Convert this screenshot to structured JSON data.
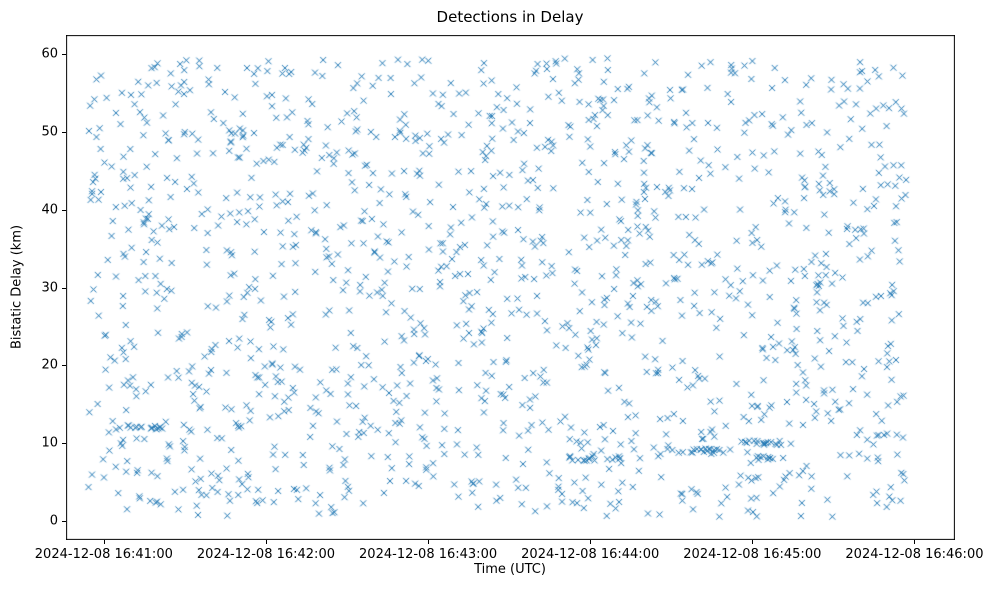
{
  "figure": {
    "background_color": "#ffffff",
    "frame_color": "#000000"
  },
  "chart_data": {
    "type": "scatter",
    "title": "Detections in Delay",
    "xlabel": "Time (UTC)",
    "ylabel": "Bistatic Delay (km)",
    "marker": "x",
    "marker_color": "#1f77b4",
    "marker_size_px": 6,
    "grid": false,
    "legend_position": "none",
    "x_tick_labels": [
      "2024-12-08 16:41:00",
      "2024-12-08 16:42:00",
      "2024-12-08 16:43:00",
      "2024-12-08 16:44:00",
      "2024-12-08 16:45:00",
      "2024-12-08 16:46:00"
    ],
    "x_tick_offsets_s": [
      0,
      60,
      120,
      180,
      240,
      300
    ],
    "x_axis_epoch_label": "2024-12-08 16:41:00",
    "xlim_offsets_s": [
      -14,
      315
    ],
    "y_ticks": [
      0,
      10,
      20,
      30,
      40,
      50,
      60
    ],
    "ylim": [
      -2.5,
      62.5
    ],
    "point_count": 1580,
    "data_extent": {
      "t_min_s": -6,
      "t_max_s": 297,
      "delay_min_km": 0.5,
      "delay_max_km": 59.5
    },
    "distribution": "dense, approximately uniform random scatter of detections over the full time and delay range",
    "random_seed": 42,
    "streak_jitter_km": 0.3,
    "streaks": [
      {
        "delay_km": 12,
        "t_start_s": 8,
        "t_end_s": 24,
        "count": 16
      },
      {
        "delay_km": 8,
        "t_start_s": 172,
        "t_end_s": 192,
        "count": 18
      },
      {
        "delay_km": 9,
        "t_start_s": 208,
        "t_end_s": 232,
        "count": 18
      },
      {
        "delay_km": 10,
        "t_start_s": 234,
        "t_end_s": 256,
        "count": 18
      },
      {
        "delay_km": 8,
        "t_start_s": 240,
        "t_end_s": 252,
        "count": 10
      }
    ]
  }
}
